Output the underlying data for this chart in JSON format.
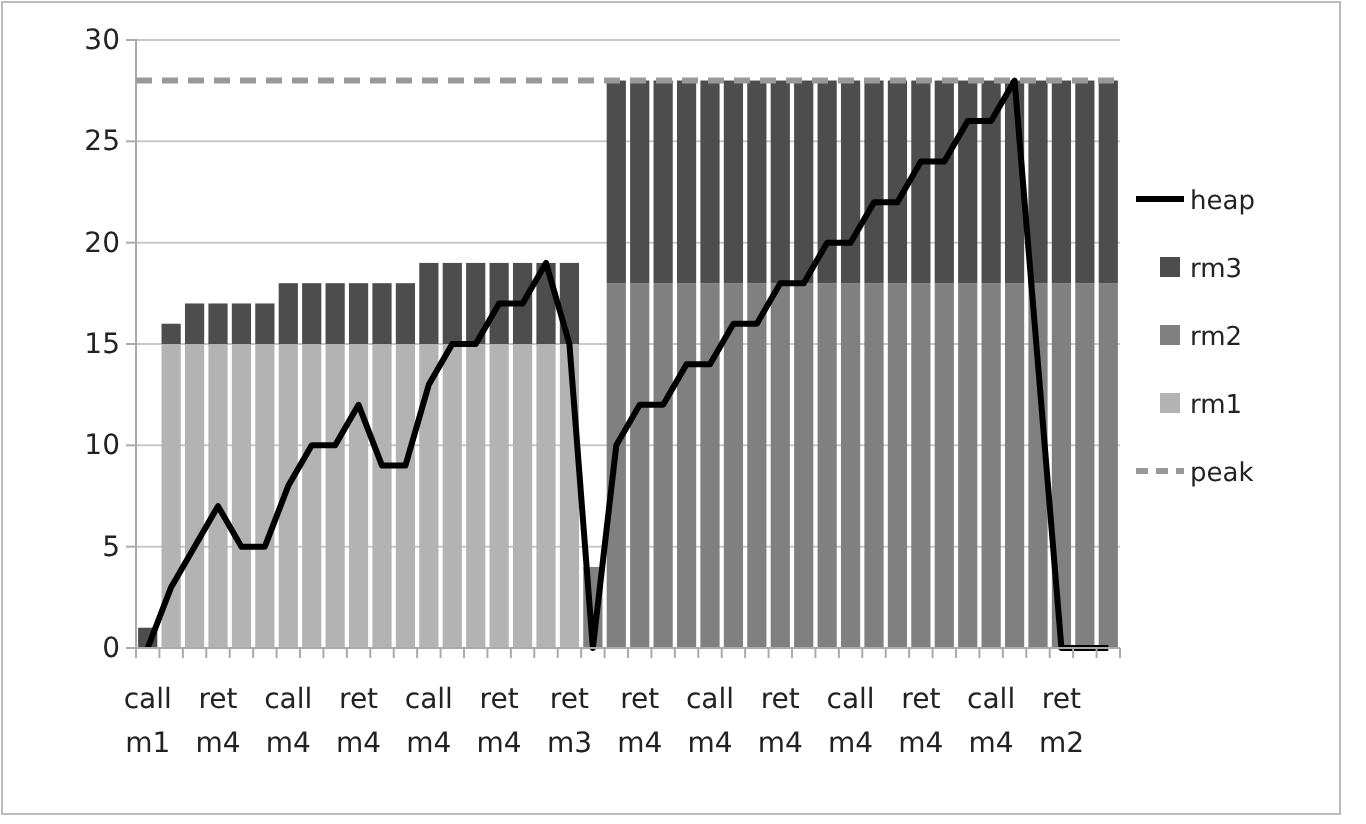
{
  "chart_data": {
    "type": "bar",
    "stacked": true,
    "categories": [
      "call m1",
      null,
      null,
      "ret m4",
      null,
      null,
      "call m4",
      null,
      null,
      "ret m4",
      null,
      null,
      "call m4",
      null,
      null,
      "ret m4",
      null,
      null,
      "ret m3",
      null,
      null,
      "ret m4",
      null,
      null,
      "call m4",
      null,
      null,
      "ret m4",
      null,
      null,
      "call m4",
      null,
      null,
      "ret m4",
      null,
      null,
      "call m4",
      null,
      null,
      "ret m2",
      null,
      null
    ],
    "series": [
      {
        "name": "rm1",
        "color": "#b3b3b3",
        "values": [
          0,
          15,
          15,
          15,
          15,
          15,
          15,
          15,
          15,
          15,
          15,
          15,
          15,
          15,
          15,
          15,
          15,
          15,
          15,
          0,
          0,
          0,
          0,
          0,
          0,
          0,
          0,
          0,
          0,
          0,
          0,
          0,
          0,
          0,
          0,
          0,
          0,
          0,
          0,
          0,
          0,
          0
        ]
      },
      {
        "name": "rm2",
        "color": "#808080",
        "values": [
          0,
          0,
          0,
          0,
          0,
          0,
          0,
          0,
          0,
          0,
          0,
          0,
          0,
          0,
          0,
          0,
          0,
          0,
          0,
          4,
          18,
          18,
          18,
          18,
          18,
          18,
          18,
          18,
          18,
          18,
          18,
          18,
          18,
          18,
          18,
          18,
          18,
          18,
          18,
          18,
          18,
          18
        ]
      },
      {
        "name": "rm3",
        "color": "#4d4d4d",
        "values": [
          1,
          1,
          2,
          2,
          2,
          2,
          3,
          3,
          3,
          3,
          3,
          3,
          4,
          4,
          4,
          4,
          4,
          4,
          4,
          0,
          10,
          10,
          10,
          10,
          10,
          10,
          10,
          10,
          10,
          10,
          10,
          10,
          10,
          10,
          10,
          10,
          10,
          10,
          10,
          10,
          10,
          10
        ]
      },
      {
        "name": "heap",
        "type": "line",
        "color": "#000000",
        "values": [
          0,
          3,
          5,
          7,
          5,
          5,
          8,
          10,
          10,
          12,
          9,
          9,
          13,
          15,
          15,
          17,
          17,
          19,
          15,
          0,
          10,
          12,
          12,
          14,
          14,
          16,
          16,
          18,
          18,
          20,
          20,
          22,
          22,
          24,
          24,
          26,
          26,
          28,
          14,
          0,
          0,
          0
        ]
      }
    ],
    "ref_lines": [
      {
        "axis": "y",
        "value": 28,
        "label": "peak",
        "color": "#999999",
        "line_style": "dashed"
      }
    ],
    "ylim": [
      0,
      30
    ],
    "yticks": [
      0,
      5,
      10,
      15,
      20,
      25,
      30
    ],
    "grid": "y",
    "legend": "right"
  }
}
